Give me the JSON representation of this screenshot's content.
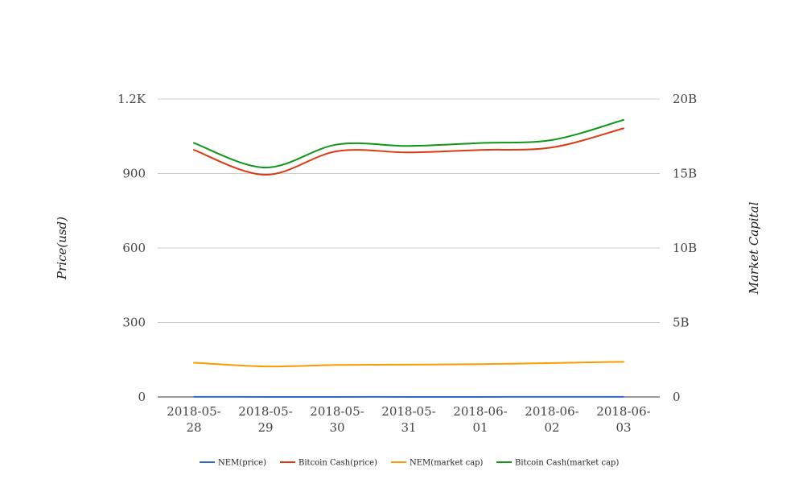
{
  "chart_data": {
    "type": "line",
    "x": [
      "2018-05-28",
      "2018-05-29",
      "2018-05-30",
      "2018-05-31",
      "2018-06-01",
      "2018-06-02",
      "2018-06-03"
    ],
    "x_tick_labels": [
      [
        "2018-05-",
        "28"
      ],
      [
        "2018-05-",
        "29"
      ],
      [
        "2018-05-",
        "30"
      ],
      [
        "2018-05-",
        "31"
      ],
      [
        "2018-06-",
        "01"
      ],
      [
        "2018-06-",
        "02"
      ],
      [
        "2018-06-",
        "03"
      ]
    ],
    "ylabel": "Price(usd)",
    "y2label": "Market Capital",
    "ylim": [
      0,
      1200
    ],
    "y2lim": [
      0,
      20000000000
    ],
    "y_ticks": [
      0,
      300,
      600,
      900,
      1200
    ],
    "y_tick_labels": [
      "0",
      "300",
      "600",
      "900",
      "1.2K"
    ],
    "y2_tick_labels": [
      "0",
      "5B",
      "10B",
      "15B",
      "20B"
    ],
    "grid": true,
    "legend_position": "bottom",
    "series": [
      {
        "name": "NEM(price)",
        "axis": "left",
        "color": "#3366cc",
        "values": [
          0.22,
          0.2,
          0.21,
          0.21,
          0.21,
          0.22,
          0.23
        ]
      },
      {
        "name": "Bitcoin Cash(price)",
        "axis": "left",
        "color": "#dc3912",
        "values": [
          995,
          895,
          990,
          985,
          995,
          1005,
          1082
        ]
      },
      {
        "name": "NEM(market cap)",
        "axis": "right",
        "color": "#ff9900",
        "values": [
          2300000000,
          2050000000,
          2150000000,
          2170000000,
          2200000000,
          2280000000,
          2360000000
        ]
      },
      {
        "name": "Bitcoin Cash(market cap)",
        "axis": "right",
        "color": "#109618",
        "values": [
          17050000000,
          15400000000,
          16950000000,
          16850000000,
          17050000000,
          17250000000,
          18600000000
        ]
      }
    ]
  }
}
